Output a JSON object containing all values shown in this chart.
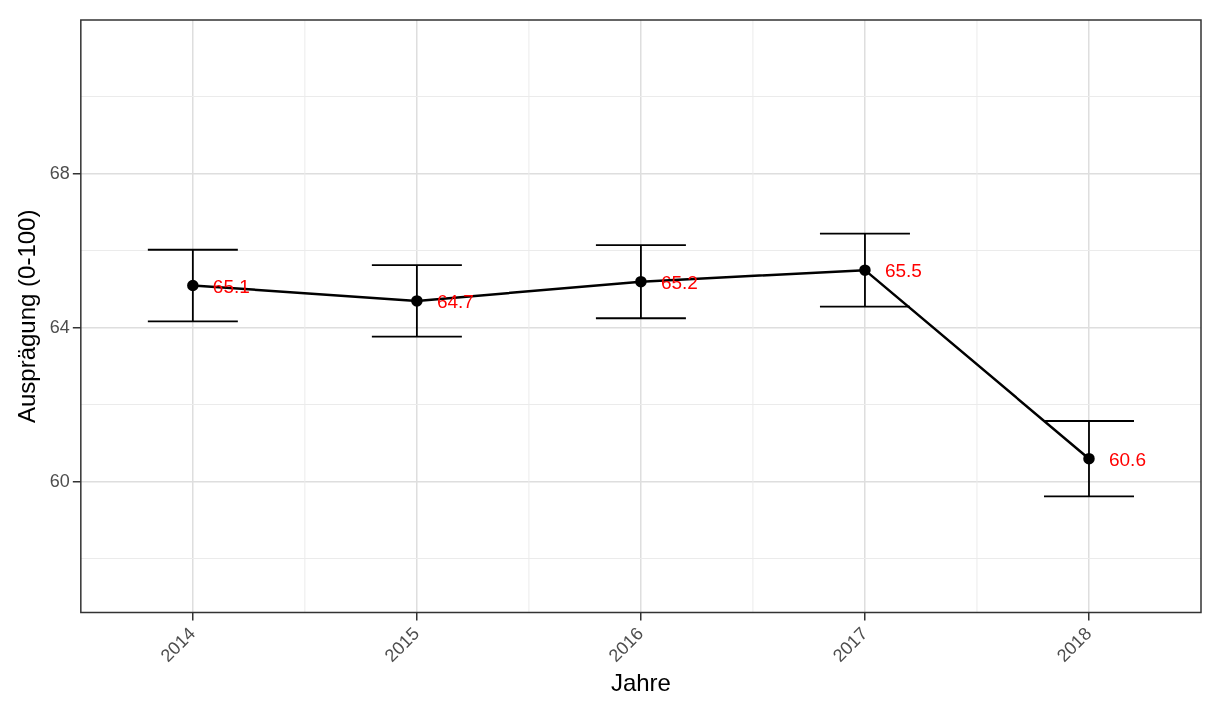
{
  "chart_data": {
    "type": "line",
    "xlabel": "Jahre",
    "ylabel": "Ausprägung (0-100)",
    "categories": [
      "2014",
      "2015",
      "2016",
      "2017",
      "2018"
    ],
    "values": [
      65.1,
      64.7,
      65.2,
      65.5,
      60.6
    ],
    "errors": [
      0.93,
      0.93,
      0.95,
      0.95,
      0.98
    ],
    "color": "#000000",
    "ylim": [
      56.6,
      72
    ],
    "yticks": [
      {
        "value": 58,
        "label": null
      },
      60,
      {
        "value": 62,
        "label": null
      },
      64,
      {
        "value": 66,
        "label": null
      },
      68,
      {
        "value": 70,
        "label": null
      }
    ],
    "grid": true,
    "legend": false,
    "marker": "circle",
    "line_style": "solid",
    "data_labels": true
  }
}
